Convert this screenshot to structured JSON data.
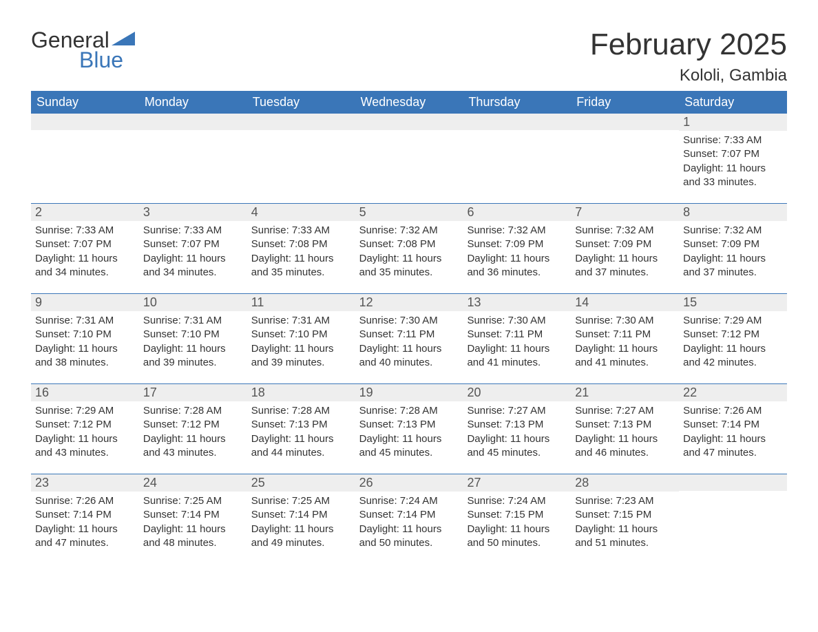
{
  "logo": {
    "text1": "General",
    "text2": "Blue",
    "sail_color": "#3a76b8"
  },
  "title": "February 2025",
  "location": "Kololi, Gambia",
  "colors": {
    "header_bg": "#3a76b8",
    "header_text": "#ffffff",
    "daynum_bg": "#eeeeee",
    "text": "#333333",
    "border": "#3a76b8"
  },
  "fonts": {
    "title_size_pt": 33,
    "location_size_pt": 18,
    "dayhead_size_pt": 14,
    "body_size_pt": 11
  },
  "day_headers": [
    "Sunday",
    "Monday",
    "Tuesday",
    "Wednesday",
    "Thursday",
    "Friday",
    "Saturday"
  ],
  "weeks": [
    [
      {
        "day": "",
        "sunrise": "",
        "sunset": "",
        "daylight": ""
      },
      {
        "day": "",
        "sunrise": "",
        "sunset": "",
        "daylight": ""
      },
      {
        "day": "",
        "sunrise": "",
        "sunset": "",
        "daylight": ""
      },
      {
        "day": "",
        "sunrise": "",
        "sunset": "",
        "daylight": ""
      },
      {
        "day": "",
        "sunrise": "",
        "sunset": "",
        "daylight": ""
      },
      {
        "day": "",
        "sunrise": "",
        "sunset": "",
        "daylight": ""
      },
      {
        "day": "1",
        "sunrise": "Sunrise: 7:33 AM",
        "sunset": "Sunset: 7:07 PM",
        "daylight": "Daylight: 11 hours and 33 minutes."
      }
    ],
    [
      {
        "day": "2",
        "sunrise": "Sunrise: 7:33 AM",
        "sunset": "Sunset: 7:07 PM",
        "daylight": "Daylight: 11 hours and 34 minutes."
      },
      {
        "day": "3",
        "sunrise": "Sunrise: 7:33 AM",
        "sunset": "Sunset: 7:07 PM",
        "daylight": "Daylight: 11 hours and 34 minutes."
      },
      {
        "day": "4",
        "sunrise": "Sunrise: 7:33 AM",
        "sunset": "Sunset: 7:08 PM",
        "daylight": "Daylight: 11 hours and 35 minutes."
      },
      {
        "day": "5",
        "sunrise": "Sunrise: 7:32 AM",
        "sunset": "Sunset: 7:08 PM",
        "daylight": "Daylight: 11 hours and 35 minutes."
      },
      {
        "day": "6",
        "sunrise": "Sunrise: 7:32 AM",
        "sunset": "Sunset: 7:09 PM",
        "daylight": "Daylight: 11 hours and 36 minutes."
      },
      {
        "day": "7",
        "sunrise": "Sunrise: 7:32 AM",
        "sunset": "Sunset: 7:09 PM",
        "daylight": "Daylight: 11 hours and 37 minutes."
      },
      {
        "day": "8",
        "sunrise": "Sunrise: 7:32 AM",
        "sunset": "Sunset: 7:09 PM",
        "daylight": "Daylight: 11 hours and 37 minutes."
      }
    ],
    [
      {
        "day": "9",
        "sunrise": "Sunrise: 7:31 AM",
        "sunset": "Sunset: 7:10 PM",
        "daylight": "Daylight: 11 hours and 38 minutes."
      },
      {
        "day": "10",
        "sunrise": "Sunrise: 7:31 AM",
        "sunset": "Sunset: 7:10 PM",
        "daylight": "Daylight: 11 hours and 39 minutes."
      },
      {
        "day": "11",
        "sunrise": "Sunrise: 7:31 AM",
        "sunset": "Sunset: 7:10 PM",
        "daylight": "Daylight: 11 hours and 39 minutes."
      },
      {
        "day": "12",
        "sunrise": "Sunrise: 7:30 AM",
        "sunset": "Sunset: 7:11 PM",
        "daylight": "Daylight: 11 hours and 40 minutes."
      },
      {
        "day": "13",
        "sunrise": "Sunrise: 7:30 AM",
        "sunset": "Sunset: 7:11 PM",
        "daylight": "Daylight: 11 hours and 41 minutes."
      },
      {
        "day": "14",
        "sunrise": "Sunrise: 7:30 AM",
        "sunset": "Sunset: 7:11 PM",
        "daylight": "Daylight: 11 hours and 41 minutes."
      },
      {
        "day": "15",
        "sunrise": "Sunrise: 7:29 AM",
        "sunset": "Sunset: 7:12 PM",
        "daylight": "Daylight: 11 hours and 42 minutes."
      }
    ],
    [
      {
        "day": "16",
        "sunrise": "Sunrise: 7:29 AM",
        "sunset": "Sunset: 7:12 PM",
        "daylight": "Daylight: 11 hours and 43 minutes."
      },
      {
        "day": "17",
        "sunrise": "Sunrise: 7:28 AM",
        "sunset": "Sunset: 7:12 PM",
        "daylight": "Daylight: 11 hours and 43 minutes."
      },
      {
        "day": "18",
        "sunrise": "Sunrise: 7:28 AM",
        "sunset": "Sunset: 7:13 PM",
        "daylight": "Daylight: 11 hours and 44 minutes."
      },
      {
        "day": "19",
        "sunrise": "Sunrise: 7:28 AM",
        "sunset": "Sunset: 7:13 PM",
        "daylight": "Daylight: 11 hours and 45 minutes."
      },
      {
        "day": "20",
        "sunrise": "Sunrise: 7:27 AM",
        "sunset": "Sunset: 7:13 PM",
        "daylight": "Daylight: 11 hours and 45 minutes."
      },
      {
        "day": "21",
        "sunrise": "Sunrise: 7:27 AM",
        "sunset": "Sunset: 7:13 PM",
        "daylight": "Daylight: 11 hours and 46 minutes."
      },
      {
        "day": "22",
        "sunrise": "Sunrise: 7:26 AM",
        "sunset": "Sunset: 7:14 PM",
        "daylight": "Daylight: 11 hours and 47 minutes."
      }
    ],
    [
      {
        "day": "23",
        "sunrise": "Sunrise: 7:26 AM",
        "sunset": "Sunset: 7:14 PM",
        "daylight": "Daylight: 11 hours and 47 minutes."
      },
      {
        "day": "24",
        "sunrise": "Sunrise: 7:25 AM",
        "sunset": "Sunset: 7:14 PM",
        "daylight": "Daylight: 11 hours and 48 minutes."
      },
      {
        "day": "25",
        "sunrise": "Sunrise: 7:25 AM",
        "sunset": "Sunset: 7:14 PM",
        "daylight": "Daylight: 11 hours and 49 minutes."
      },
      {
        "day": "26",
        "sunrise": "Sunrise: 7:24 AM",
        "sunset": "Sunset: 7:14 PM",
        "daylight": "Daylight: 11 hours and 50 minutes."
      },
      {
        "day": "27",
        "sunrise": "Sunrise: 7:24 AM",
        "sunset": "Sunset: 7:15 PM",
        "daylight": "Daylight: 11 hours and 50 minutes."
      },
      {
        "day": "28",
        "sunrise": "Sunrise: 7:23 AM",
        "sunset": "Sunset: 7:15 PM",
        "daylight": "Daylight: 11 hours and 51 minutes."
      },
      {
        "day": "",
        "sunrise": "",
        "sunset": "",
        "daylight": ""
      }
    ]
  ]
}
